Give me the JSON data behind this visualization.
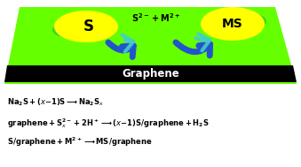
{
  "bg_color": "#ffffff",
  "graphene_color": "#66ff00",
  "graphene_dark_strip_color": "#000000",
  "graphene_label": "Graphene",
  "graphene_label_color": "#ffffff",
  "nanocrystal_color": "#ffff00",
  "nanocrystal_shadow_color": "#33cc33",
  "arrow_blue": "#2255cc",
  "arrow_cyan": "#44cccc",
  "label_S": "S",
  "label_center": "$\\mathbf{S^{2-}+M^{2+}}$",
  "label_MS": "MS",
  "eq1": "$\\mathbf{Na_2S + (\\mathit{x}\\text{-}1)S \\longrightarrow Na_2S_{\\mathit{x}}}$",
  "eq2": "$\\mathbf{graphene + S_{\\mathit{x}}^{2-} + 2H^+ \\longrightarrow (\\mathit{x}\\text{-}1)S/graphene + H_2S}$",
  "eq3": "$\\mathbf{S/graphene + M^{2+} \\longrightarrow MS/graphene}$",
  "figsize": [
    3.39,
    1.89
  ],
  "dpi": 100
}
